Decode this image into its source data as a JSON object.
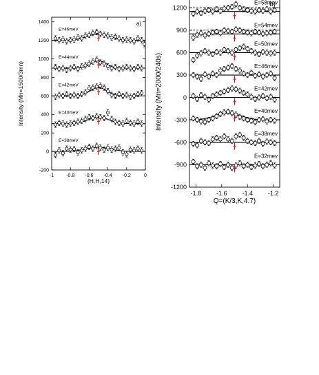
{
  "chart_data": [
    {
      "type": "scatter",
      "panel_label": "a)",
      "xlabel": "(H,H,14)",
      "ylabel": "Intensity (Mn=1500/3mn)",
      "xlim": [
        -1,
        0
      ],
      "ylim": [
        -200,
        1450
      ],
      "xticks": [
        "-1",
        "-0.8",
        "-0.6",
        "-0.4",
        "-0.2",
        "0"
      ],
      "xtick_values": [
        -1,
        -0.8,
        -0.6,
        -0.4,
        -0.2,
        0
      ],
      "yticks": [
        "-200",
        "0",
        "200",
        "400",
        "600",
        "800",
        "1000",
        "1200",
        "1400"
      ],
      "ytick_values": [
        -200,
        0,
        200,
        400,
        600,
        800,
        1000,
        1200,
        1400
      ],
      "marker_x": -0.5,
      "series": [
        {
          "name": "E=38meV",
          "baseline": 0,
          "peak": 45,
          "sigma": 0.13,
          "center": -0.5,
          "x": [
            -0.96,
            -0.92,
            -0.88,
            -0.84,
            -0.8,
            -0.76,
            -0.72,
            -0.68,
            -0.64,
            -0.6,
            -0.56,
            -0.52,
            -0.48,
            -0.44,
            -0.4,
            -0.36,
            -0.32,
            -0.28,
            -0.24,
            -0.2,
            -0.16,
            -0.12,
            -0.08,
            -0.04
          ],
          "y": [
            -40,
            10,
            -20,
            30,
            20,
            25,
            -10,
            10,
            30,
            50,
            30,
            60,
            40,
            20,
            40,
            20,
            30,
            40,
            -10,
            -30,
            20,
            10,
            30,
            10
          ]
        },
        {
          "name": "E=40meV",
          "baseline": 300,
          "peak": 70,
          "sigma": 0.11,
          "center": -0.5,
          "x": [
            -0.96,
            -0.92,
            -0.88,
            -0.84,
            -0.8,
            -0.76,
            -0.72,
            -0.68,
            -0.64,
            -0.6,
            -0.56,
            -0.52,
            -0.48,
            -0.44,
            -0.4,
            -0.36,
            -0.32,
            -0.28,
            -0.24,
            -0.2,
            -0.16,
            -0.12,
            -0.08,
            -0.04
          ],
          "y": [
            290,
            310,
            300,
            290,
            300,
            310,
            320,
            330,
            350,
            370,
            360,
            380,
            370,
            360,
            420,
            350,
            320,
            310,
            300,
            330,
            310,
            300,
            320,
            300
          ]
        },
        {
          "name": "E=42meV",
          "baseline": 600,
          "peak": 90,
          "sigma": 0.09,
          "center": -0.5,
          "x": [
            -0.96,
            -0.92,
            -0.88,
            -0.84,
            -0.8,
            -0.76,
            -0.72,
            -0.68,
            -0.64,
            -0.6,
            -0.56,
            -0.52,
            -0.48,
            -0.44,
            -0.4,
            -0.36,
            -0.32,
            -0.28,
            -0.24,
            -0.2,
            -0.16,
            -0.12,
            -0.08,
            -0.04
          ],
          "y": [
            590,
            610,
            600,
            620,
            600,
            610,
            600,
            620,
            640,
            680,
            690,
            700,
            710,
            690,
            650,
            610,
            600,
            620,
            600,
            610,
            590,
            600,
            620,
            630
          ]
        },
        {
          "name": "E=44meV",
          "baseline": 900,
          "peak": 80,
          "sigma": 0.08,
          "center": -0.5,
          "x": [
            -0.96,
            -0.92,
            -0.88,
            -0.84,
            -0.8,
            -0.76,
            -0.72,
            -0.68,
            -0.64,
            -0.6,
            -0.56,
            -0.52,
            -0.48,
            -0.44,
            -0.4,
            -0.36,
            -0.32,
            -0.28,
            -0.24,
            -0.2,
            -0.16,
            -0.12,
            -0.08,
            -0.04
          ],
          "y": [
            910,
            890,
            900,
            880,
            900,
            910,
            890,
            920,
            930,
            950,
            970,
            990,
            960,
            950,
            920,
            900,
            910,
            890,
            900,
            910,
            900,
            890,
            910,
            900
          ]
        },
        {
          "name": "E=46meV",
          "baseline": 1200,
          "peak": 70,
          "sigma": 0.12,
          "center": -0.5,
          "x": [
            -0.96,
            -0.92,
            -0.88,
            -0.84,
            -0.8,
            -0.76,
            -0.72,
            -0.68,
            -0.64,
            -0.6,
            -0.56,
            -0.52,
            -0.48,
            -0.44,
            -0.4,
            -0.36,
            -0.32,
            -0.28,
            -0.24,
            -0.2,
            -0.16,
            -0.12,
            -0.08,
            -0.04,
            -0.01
          ],
          "y": [
            1220,
            1200,
            1210,
            1190,
            1200,
            1210,
            1230,
            1220,
            1250,
            1260,
            1280,
            1290,
            1270,
            1260,
            1250,
            1230,
            1240,
            1220,
            1200,
            1210,
            1200,
            1190,
            1220,
            1200,
            1160
          ]
        }
      ]
    },
    {
      "type": "scatter",
      "panel_label": "b)",
      "xlabel": "Q=(K/3,K,4.7)",
      "ylabel": "Intensity (Mn=2000/240s)",
      "xlim": [
        -1.85,
        -1.15
      ],
      "ylim": [
        -1200,
        1350
      ],
      "xticks": [
        "-1.8",
        "-1.6",
        "-1.4",
        "-1.2"
      ],
      "xtick_values": [
        -1.8,
        -1.6,
        -1.4,
        -1.2
      ],
      "yticks": [
        "-1200",
        "-900",
        "-600",
        "-300",
        "0",
        "300",
        "600",
        "900",
        "1200"
      ],
      "ytick_values": [
        -1200,
        -900,
        -600,
        -300,
        0,
        300,
        600,
        900,
        1200
      ],
      "marker_x": -1.5,
      "series": [
        {
          "name": "E=32mev",
          "baseline": -900,
          "dashed": -900,
          "x": [
            -1.82,
            -1.79,
            -1.76,
            -1.73,
            -1.7,
            -1.67,
            -1.64,
            -1.61,
            -1.58,
            -1.55,
            -1.52,
            -1.49,
            -1.46,
            -1.43,
            -1.4,
            -1.37,
            -1.34,
            -1.31,
            -1.28,
            -1.25,
            -1.22,
            -1.19
          ],
          "y": [
            -860,
            -920,
            -900,
            -940,
            -880,
            -910,
            -920,
            -890,
            -930,
            -900,
            -940,
            -910,
            -880,
            -920,
            -900,
            -930,
            -910,
            -890,
            -920,
            -900,
            -880,
            -910
          ]
        },
        {
          "name": "E=38mev",
          "baseline": -600,
          "dashed": -600,
          "x": [
            -1.82,
            -1.79,
            -1.76,
            -1.73,
            -1.7,
            -1.67,
            -1.64,
            -1.61,
            -1.58,
            -1.55,
            -1.52,
            -1.49,
            -1.46,
            -1.43,
            -1.4,
            -1.37,
            -1.34,
            -1.31,
            -1.28,
            -1.25,
            -1.22,
            -1.19
          ],
          "y": [
            -620,
            -640,
            -580,
            -600,
            -610,
            -560,
            -540,
            -560,
            -520,
            -560,
            -580,
            -520,
            -500,
            -540,
            -580,
            -600,
            -610,
            -580,
            -620,
            -590,
            -600,
            -610
          ]
        },
        {
          "name": "E=40mev",
          "baseline": -300,
          "peak": 90,
          "center": -1.55,
          "sigma": 0.1,
          "x": [
            -1.82,
            -1.79,
            -1.76,
            -1.73,
            -1.7,
            -1.67,
            -1.64,
            -1.61,
            -1.58,
            -1.55,
            -1.52,
            -1.49,
            -1.46,
            -1.43,
            -1.4,
            -1.37,
            -1.34,
            -1.31,
            -1.28,
            -1.25,
            -1.22,
            -1.19
          ],
          "y": [
            -280,
            -300,
            -320,
            -330,
            -300,
            -280,
            -250,
            -220,
            -200,
            -190,
            -210,
            -230,
            -260,
            -280,
            -300,
            -310,
            -330,
            -300,
            -290,
            -320,
            -300,
            -310
          ]
        },
        {
          "name": "E=42mev",
          "baseline": 0,
          "dashed": 0,
          "x": [
            -1.82,
            -1.79,
            -1.76,
            -1.73,
            -1.7,
            -1.67,
            -1.64,
            -1.61,
            -1.58,
            -1.55,
            -1.52,
            -1.49,
            -1.46,
            -1.43,
            -1.4,
            -1.37,
            -1.34,
            -1.31,
            -1.28,
            -1.25,
            -1.22,
            -1.19
          ],
          "y": [
            20,
            -20,
            30,
            10,
            -30,
            20,
            40,
            60,
            80,
            100,
            120,
            110,
            90,
            60,
            40,
            10,
            -20,
            0,
            20,
            -10,
            10,
            -30
          ]
        },
        {
          "name": "E=46mev",
          "baseline": 300,
          "dashed": 300,
          "x": [
            -1.82,
            -1.79,
            -1.76,
            -1.73,
            -1.7,
            -1.67,
            -1.64,
            -1.61,
            -1.58,
            -1.55,
            -1.52,
            -1.49,
            -1.46,
            -1.43,
            -1.4,
            -1.37,
            -1.34,
            -1.31,
            -1.28,
            -1.25,
            -1.22,
            -1.19
          ],
          "y": [
            300,
            280,
            250,
            310,
            280,
            320,
            300,
            360,
            380,
            400,
            420,
            380,
            360,
            320,
            300,
            330,
            290,
            310,
            280,
            300,
            320,
            260
          ]
        },
        {
          "name": "E=50mev",
          "baseline": 600,
          "dashed": 600,
          "x": [
            -1.82,
            -1.79,
            -1.76,
            -1.73,
            -1.7,
            -1.67,
            -1.64,
            -1.61,
            -1.58,
            -1.55,
            -1.52,
            -1.49,
            -1.46,
            -1.43,
            -1.4,
            -1.37,
            -1.34,
            -1.31,
            -1.28,
            -1.25,
            -1.22,
            -1.19
          ],
          "y": [
            500,
            560,
            590,
            620,
            600,
            580,
            610,
            600,
            640,
            620,
            600,
            640,
            660,
            680,
            650,
            620,
            600,
            580,
            610,
            600,
            590,
            600
          ]
        },
        {
          "name": "E=54mev",
          "baseline": 850,
          "dashed": 900,
          "x": [
            -1.82,
            -1.79,
            -1.76,
            -1.73,
            -1.7,
            -1.67,
            -1.64,
            -1.61,
            -1.58,
            -1.55,
            -1.52,
            -1.49,
            -1.46,
            -1.43,
            -1.4,
            -1.37,
            -1.34,
            -1.31,
            -1.28,
            -1.25,
            -1.22,
            -1.19
          ],
          "y": [
            800,
            840,
            860,
            830,
            850,
            870,
            880,
            860,
            900,
            890,
            880,
            910,
            900,
            880,
            870,
            860,
            880,
            870,
            850,
            860,
            870,
            880
          ]
        },
        {
          "name": "E=58mev",
          "baseline": 1150,
          "dashed": 1200,
          "x": [
            -1.82,
            -1.79,
            -1.76,
            -1.73,
            -1.7,
            -1.67,
            -1.64,
            -1.61,
            -1.58,
            -1.55,
            -1.52,
            -1.49,
            -1.46,
            -1.43,
            -1.4,
            -1.37,
            -1.34,
            -1.31,
            -1.28,
            -1.25,
            -1.22,
            -1.19
          ],
          "y": [
            1120,
            1150,
            1130,
            1160,
            1170,
            1150,
            1180,
            1160,
            1190,
            1200,
            1210,
            1250,
            1200,
            1180,
            1170,
            1160,
            1150,
            1170,
            1160,
            1180,
            1150,
            1170
          ]
        }
      ]
    }
  ]
}
